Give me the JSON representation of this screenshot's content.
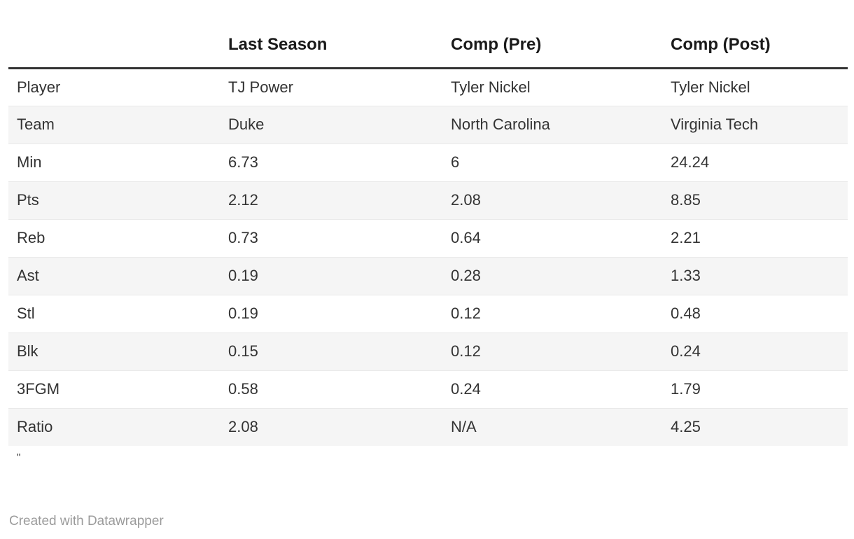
{
  "chart_data": {
    "type": "table",
    "columns": [
      "",
      "Last Season",
      "Comp (Pre)",
      "Comp (Post)"
    ],
    "rows": [
      {
        "label": "Player",
        "values": [
          "TJ Power",
          "Tyler Nickel",
          "Tyler Nickel"
        ]
      },
      {
        "label": "Team",
        "values": [
          "Duke",
          "North Carolina",
          "Virginia Tech"
        ]
      },
      {
        "label": "Min",
        "values": [
          "6.73",
          "6",
          "24.24"
        ]
      },
      {
        "label": "Pts",
        "values": [
          "2.12",
          "2.08",
          "8.85"
        ]
      },
      {
        "label": "Reb",
        "values": [
          "0.73",
          "0.64",
          "2.21"
        ]
      },
      {
        "label": "Ast",
        "values": [
          "0.19",
          "0.28",
          "1.33"
        ]
      },
      {
        "label": "Stl",
        "values": [
          "0.19",
          "0.12",
          "0.48"
        ]
      },
      {
        "label": "Blk",
        "values": [
          "0.15",
          "0.12",
          "0.24"
        ]
      },
      {
        "label": "3FGM",
        "values": [
          "0.58",
          "0.24",
          "1.79"
        ]
      },
      {
        "label": "Ratio",
        "values": [
          "2.08",
          "N/A",
          "4.25"
        ]
      }
    ],
    "layout": {
      "striped_rows": true,
      "header_rule": true
    }
  },
  "notes": "\"",
  "footer": {
    "attribution": "Created with Datawrapper"
  },
  "colors": {
    "header_text": "#1a1a1a",
    "body_text": "#333333",
    "header_rule": "#333333",
    "row_stripe": "#f5f5f5",
    "row_divider": "#e9e9e9",
    "attribution_text": "#9b9b9b",
    "background": "#ffffff"
  }
}
